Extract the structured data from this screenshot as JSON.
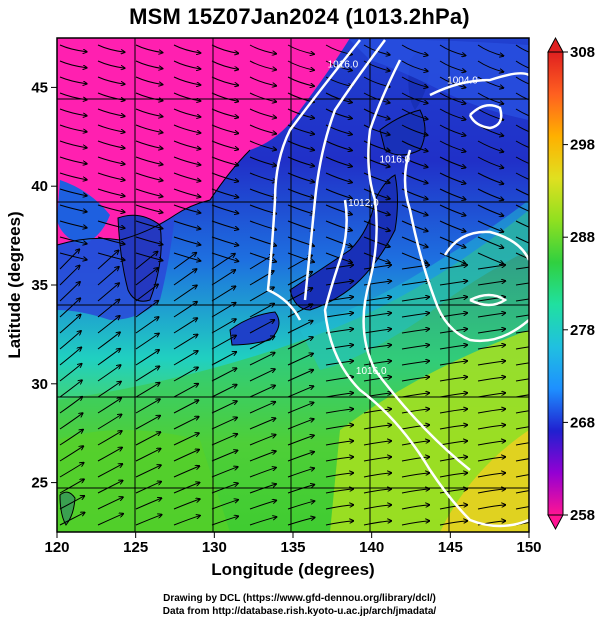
{
  "title": "MSM 15Z07Jan2024 (1013.2hPa)",
  "x_axis": {
    "label": "Longitude (degrees)",
    "ticks": [
      "120",
      "125",
      "130",
      "135",
      "140",
      "145",
      "150"
    ],
    "range": [
      120,
      150
    ]
  },
  "y_axis": {
    "label": "Latitude  (degrees)",
    "ticks": [
      "25",
      "30",
      "35",
      "40",
      "45"
    ],
    "range": [
      22.5,
      47.5
    ]
  },
  "colorbar": {
    "ticks": [
      "258",
      "268",
      "278",
      "288",
      "298",
      "308"
    ],
    "range": [
      258,
      308
    ],
    "colors": [
      "#ff1493",
      "#9400d3",
      "#2020d0",
      "#1e90ff",
      "#20c0e0",
      "#20e0a0",
      "#30d040",
      "#90e020",
      "#e0e020",
      "#ffb000",
      "#ff6020",
      "#e02020"
    ]
  },
  "isobar_labels": [
    {
      "text": "1016.0",
      "lon": 137.2,
      "lat": 46.0
    },
    {
      "text": "1004.0",
      "lon": 144.8,
      "lat": 45.2
    },
    {
      "text": "1012.0",
      "lon": 138.5,
      "lat": 39.0
    },
    {
      "text": "1016.0",
      "lon": 140.5,
      "lat": 41.2
    },
    {
      "text": "1016.0",
      "lon": 139.0,
      "lat": 30.5
    }
  ],
  "credits": {
    "line1": "Drawing by DCL (https://www.gfd-dennou.org/library/dcl/)",
    "line2": "Data from http://database.rish.kyoto-u.ac.jp/arch/jmadata/"
  }
}
